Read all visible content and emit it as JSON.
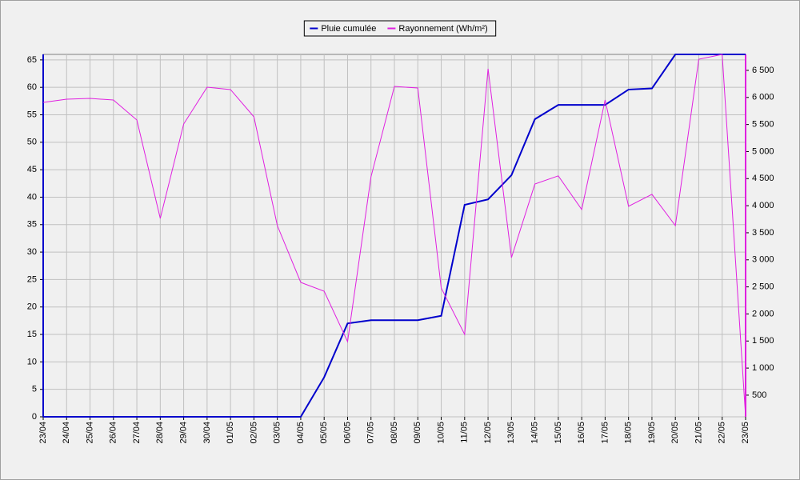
{
  "chart_data": {
    "type": "line",
    "categories": [
      "23/04",
      "24/04",
      "25/04",
      "26/04",
      "27/04",
      "28/04",
      "29/04",
      "30/04",
      "01/05",
      "02/05",
      "03/05",
      "04/05",
      "05/05",
      "06/05",
      "07/05",
      "08/05",
      "09/05",
      "10/05",
      "11/05",
      "12/05",
      "13/05",
      "14/05",
      "15/05",
      "16/05",
      "17/05",
      "18/05",
      "19/05",
      "20/05",
      "21/05",
      "22/05",
      "23/05"
    ],
    "series": [
      {
        "name": "Pluie cumulée",
        "color": "#0000cc",
        "values": [
          0,
          0,
          0,
          0,
          0,
          0,
          0,
          0,
          0,
          0,
          0,
          0,
          7.2,
          17,
          17.6,
          17.6,
          17.6,
          18.4,
          38.6,
          39.6,
          44,
          54.2,
          56.8,
          56.8,
          56.8,
          59.6,
          59.8,
          66,
          66,
          66,
          66
        ]
      },
      {
        "name": "Rayonnement (Wh/m²)",
        "color": "#e020e0",
        "axis": "y2",
        "values": [
          5908,
          5967,
          5982,
          5952,
          5583,
          3765,
          5509,
          6189,
          6145,
          5642,
          3632,
          2583,
          2420,
          1489,
          4533,
          6203,
          6174,
          2479,
          1622,
          6529,
          3041,
          4400,
          4551,
          3930,
          5953,
          3989,
          4210,
          3632,
          6706,
          6795,
          100
        ]
      }
    ],
    "ylim": [
      0,
      66
    ],
    "yticks": [
      0,
      5,
      10,
      15,
      20,
      25,
      30,
      35,
      40,
      45,
      50,
      55,
      60,
      65
    ],
    "y2lim": [
      100,
      6795
    ],
    "y2ticks": [
      {
        "value": 500,
        "label": "500"
      },
      {
        "value": 1000,
        "label": "1 000"
      },
      {
        "value": 1500,
        "label": "1 500"
      },
      {
        "value": 2000,
        "label": "2 000"
      },
      {
        "value": 2500,
        "label": "2 500"
      },
      {
        "value": 3000,
        "label": "3 000"
      },
      {
        "value": 3500,
        "label": "3 500"
      },
      {
        "value": 4000,
        "label": "4 000"
      },
      {
        "value": 4500,
        "label": "4 500"
      },
      {
        "value": 5000,
        "label": "5 000"
      },
      {
        "value": 5500,
        "label": "5 500"
      },
      {
        "value": 6000,
        "label": "6 000"
      },
      {
        "value": 6500,
        "label": "6 500"
      }
    ],
    "grid": true,
    "legend": "top"
  }
}
